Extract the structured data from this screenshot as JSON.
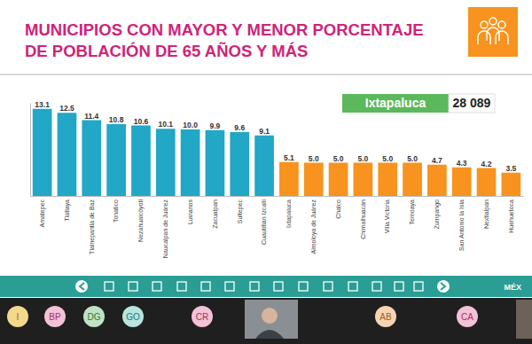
{
  "chart_data": {
    "type": "bar",
    "title": "MUNICIPIOS CON MAYOR Y MENOR PORCENTAJE DE POBLACIÓN DE 65 AÑOS Y MÁS",
    "categories": [
      "Amatepec",
      "Tlatlaya",
      "Tlalnepantla de Baz",
      "Tonatico",
      "Nezahualcóyotl",
      "Naucalpan de Juárez",
      "Luvianos",
      "Zacualpan",
      "Sultepec",
      "Cuautitlán Izcalli",
      "Ixtapaluca",
      "Almoloya de Juárez",
      "Chalco",
      "Chimalhuacán",
      "Villa Victoria",
      "Temoaya",
      "Zumpango",
      "San Antonio la Isla",
      "Nextlalpan",
      "Huehuetoca"
    ],
    "values": [
      13.1,
      12.5,
      11.4,
      10.8,
      10.6,
      10.1,
      10.0,
      9.9,
      9.6,
      9.1,
      5.1,
      5.0,
      5.0,
      5.0,
      5.0,
      5.0,
      4.7,
      4.3,
      4.2,
      3.5
    ],
    "value_labels": [
      "13.1",
      "12.5",
      "11.4",
      "10.8",
      "10.6",
      "10.1",
      "10.0",
      "9.9",
      "9.6",
      "9.1",
      "5.1",
      "5.0",
      "5.0",
      "5.0",
      "5.0",
      "5.0",
      "4.7",
      "4.3",
      "4.2",
      "3.5"
    ],
    "colors": [
      "#22a7c6",
      "#22a7c6",
      "#22a7c6",
      "#22a7c6",
      "#22a7c6",
      "#22a7c6",
      "#22a7c6",
      "#22a7c6",
      "#22a7c6",
      "#22a7c6",
      "#f7931e",
      "#f7931e",
      "#f7931e",
      "#f7931e",
      "#f7931e",
      "#f7931e",
      "#f7931e",
      "#f7931e",
      "#f7931e",
      "#f7931e"
    ],
    "ylim": [
      0,
      14
    ],
    "data_labels": true,
    "tick_labels": "x",
    "annotations": [
      "Ixtapaluca",
      "28 089"
    ]
  },
  "footer": {
    "text": "MÉX"
  },
  "participants": [
    "I",
    "BP",
    "DG",
    "GO",
    "CR",
    "AB",
    "CA"
  ]
}
